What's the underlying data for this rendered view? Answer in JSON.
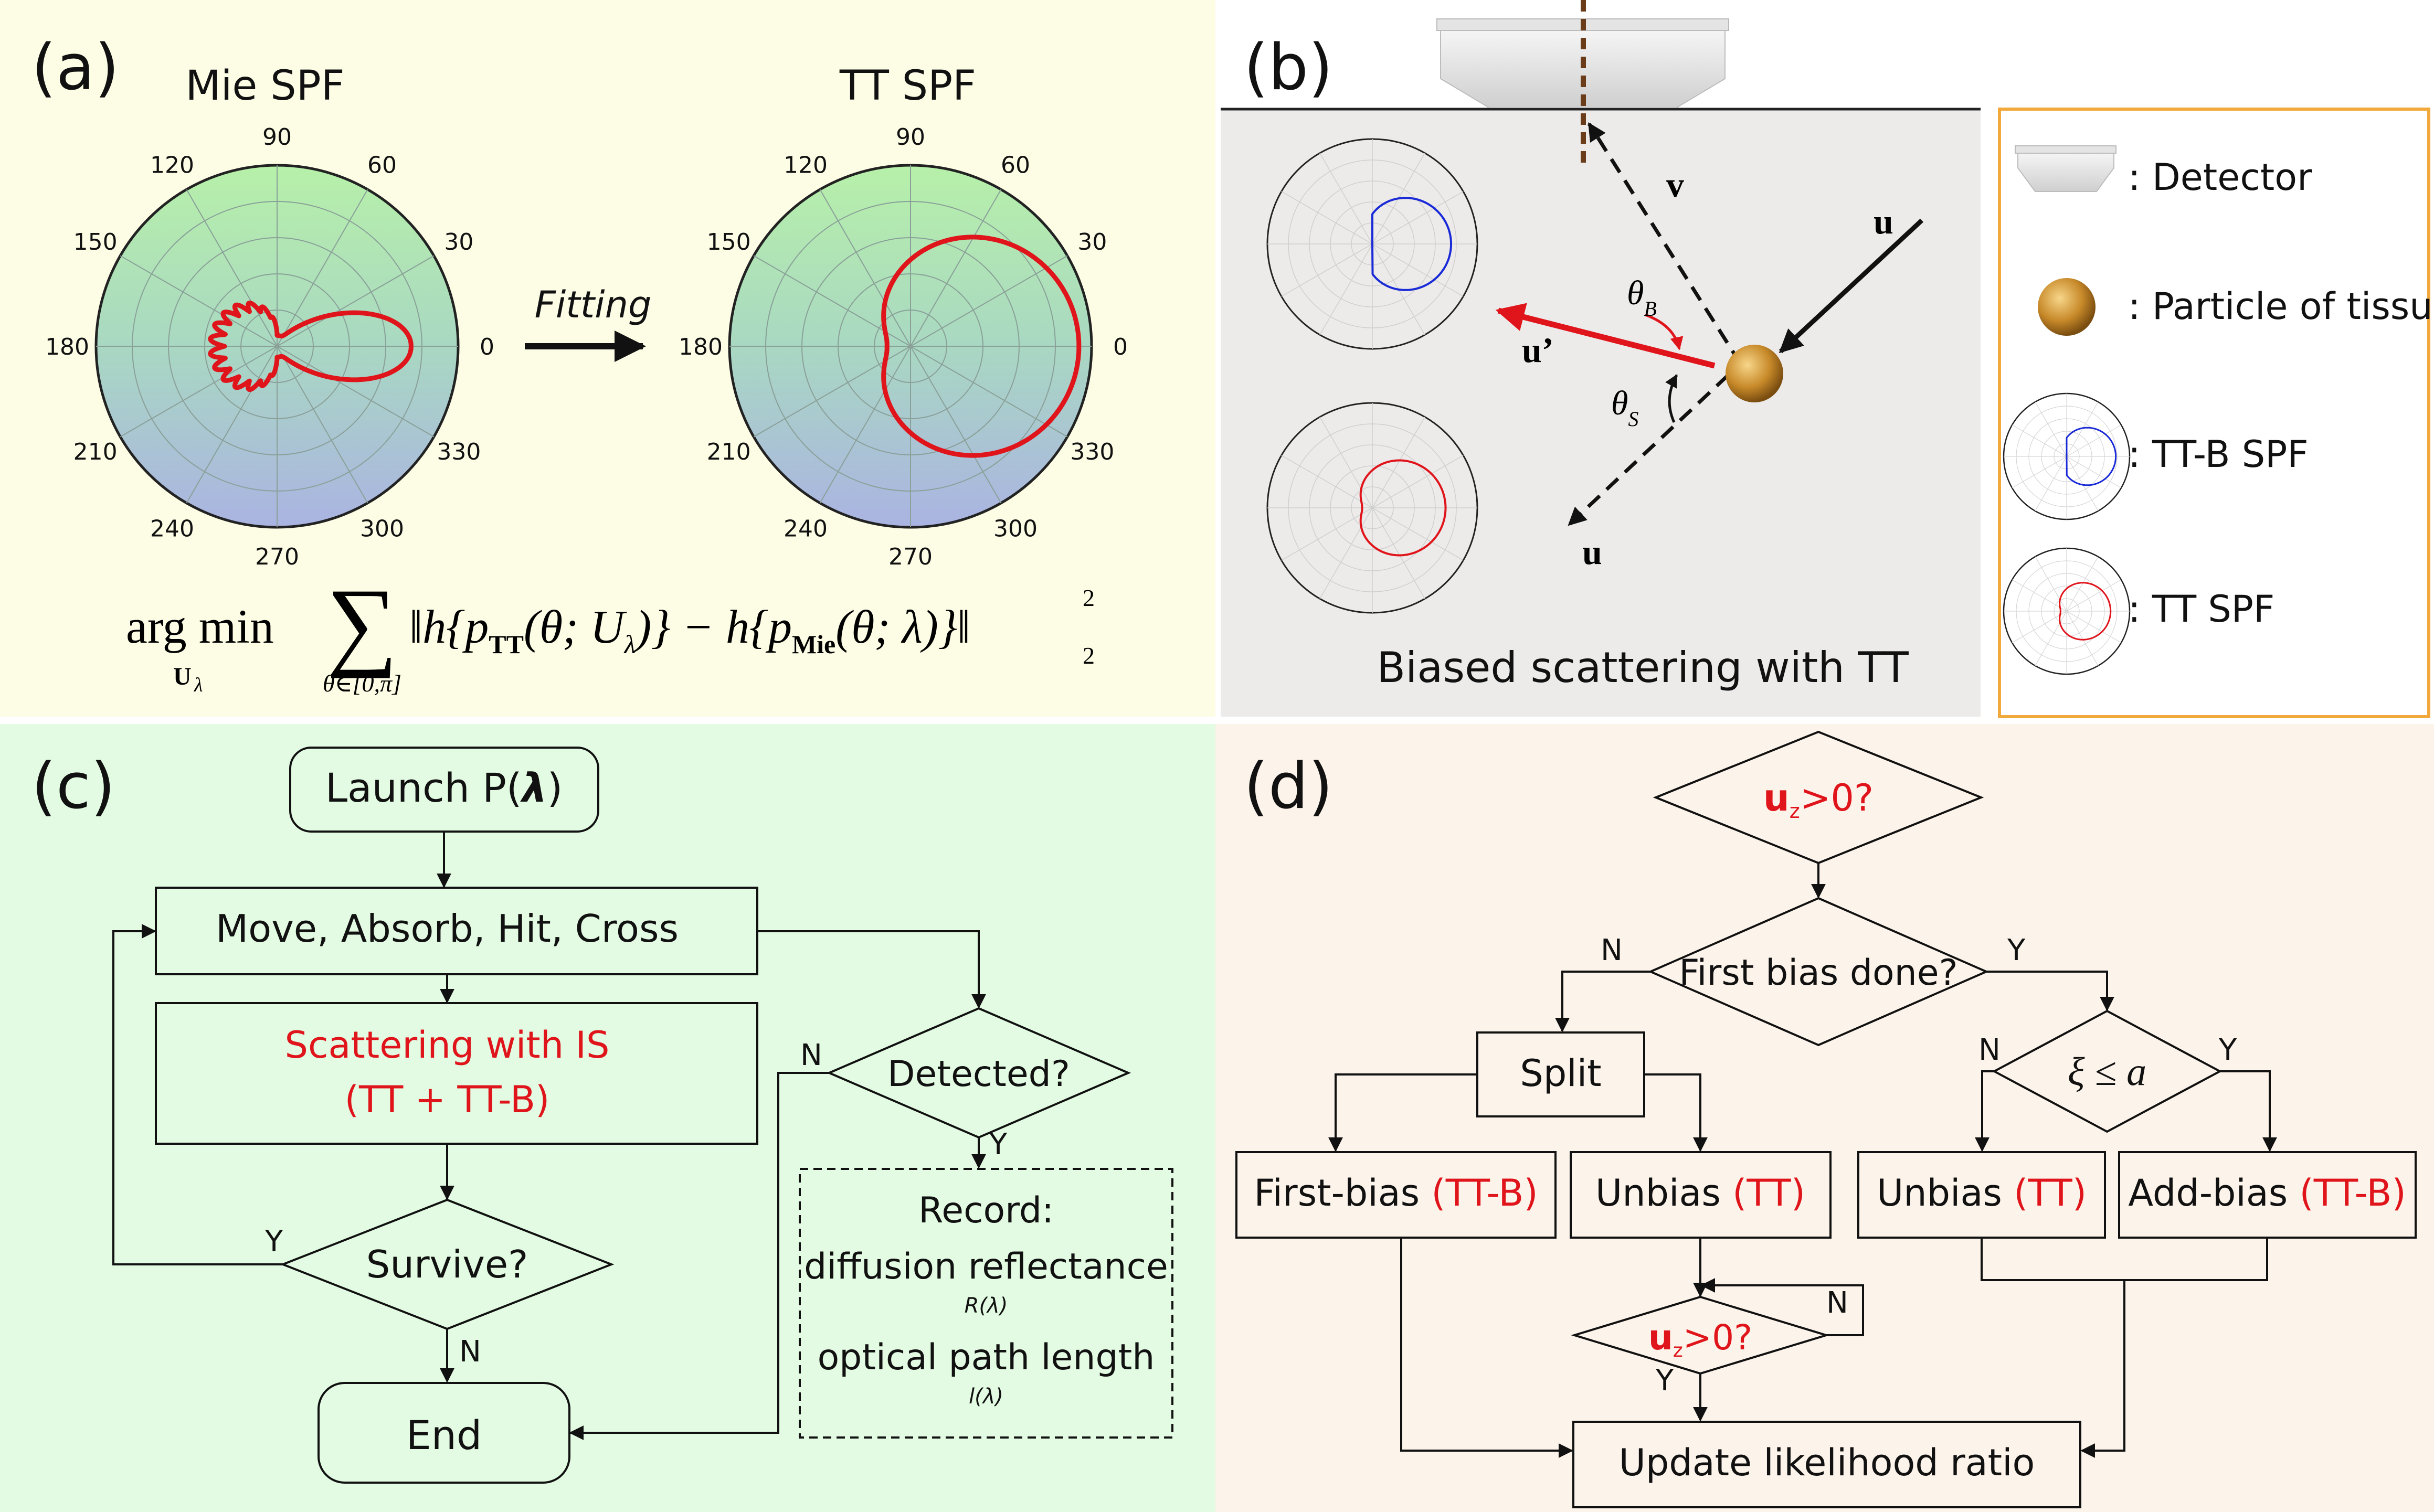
{
  "panels": {
    "a": {
      "label": "(a)",
      "mie_title": "Mie SPF",
      "tt_title": "TT SPF",
      "fitting": "Fitting",
      "angles": [
        "90",
        "60",
        "30",
        "0",
        "330",
        "300",
        "270",
        "240",
        "210",
        "180",
        "150",
        "120"
      ],
      "formula": {
        "argmin": "arg min",
        "sub": "U",
        "sub_lambda": "λ",
        "range": "θ∈[0,π]",
        "body": "‖h{p",
        "tt": "TT",
        "mid": "(θ; U",
        "mid2": ")} − h{p",
        "mie": "Mie",
        "end": "(θ; λ)}‖",
        "sup": "2",
        "subn": "2"
      },
      "colors": {
        "bg": "#fdfde6",
        "curve": "#e0141b"
      }
    },
    "b": {
      "label": "(b)",
      "vec_u_in": "u",
      "vec_u_out": "u",
      "vec_v": "v",
      "vec_u_prime": "u’",
      "theta_b": "θ",
      "theta_b_sub": "B",
      "theta_s": "θ",
      "theta_s_sub": "S",
      "caption": "Biased scattering with TT",
      "legend": [
        ": Detector",
        ": Particle of tissue",
        ": TT-B SPF",
        ": TT SPF"
      ],
      "colors": {
        "bg": "#ecebea",
        "legend_border": "#f2a93b",
        "blue": "#1a2ad6",
        "red": "#e0141b"
      }
    },
    "c": {
      "label": "(c)",
      "launch": "Launch P(",
      "launch_lambda": "λ",
      "launch_close": ")",
      "move": "Move, Absorb, Hit, Cross",
      "scatter1": "Scattering with IS",
      "scatter2": "(TT + TT-B)",
      "survive": "Survive?",
      "end": "End",
      "detected": "Detected?",
      "record": "Record:",
      "diffusion": "diffusion reflectance",
      "r_lambda": "R(λ)",
      "optical": "optical path length",
      "l_lambda": "l(λ)",
      "y": "Y",
      "n": "N",
      "colors": {
        "bg": "#e2fbe2"
      }
    },
    "d": {
      "label": "(d)",
      "uz_top_u": "u",
      "uz_top_z": "z",
      "uz_top_rest": ">0?",
      "first_bias_done": "First bias done?",
      "split": "Split",
      "xi": "ξ ≤ a",
      "first_bias": "First-bias ",
      "first_bias_tag": "(TT-B)",
      "unbias": "Unbias ",
      "unbias_tag": "(TT)",
      "unbias2": "Unbias ",
      "unbias2_tag": "(TT)",
      "add_bias": "Add-bias ",
      "add_bias_tag": "(TT-B)",
      "uz_mid_u": "u",
      "uz_mid_z": "z",
      "uz_mid_rest": ">0?",
      "update": "Update likelihood ratio",
      "y": "Y",
      "n": "N",
      "colors": {
        "bg": "#fcf3ea"
      }
    }
  }
}
